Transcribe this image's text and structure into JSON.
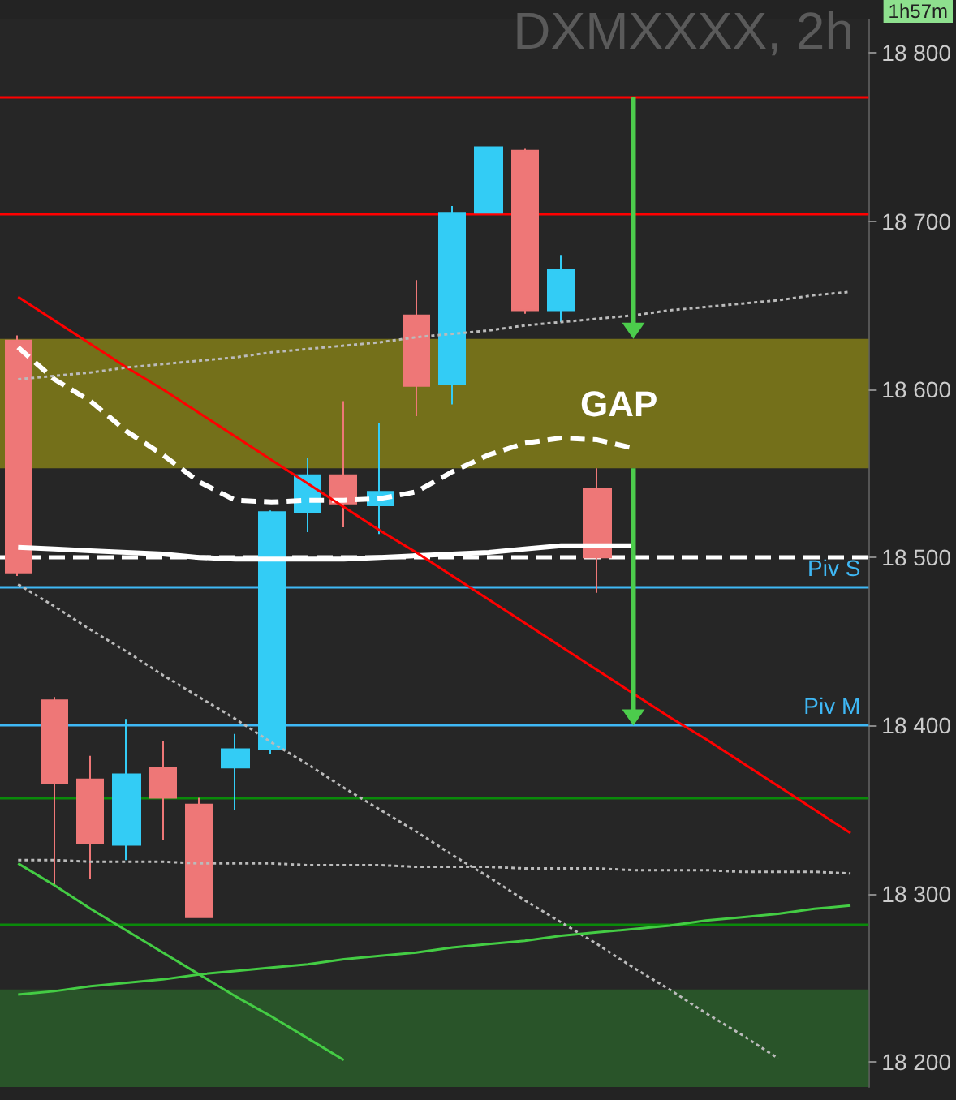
{
  "chart_data": {
    "type": "candlestick",
    "title": "DXMXXXX, 2h",
    "annotations": [
      "1h57m"
    ],
    "categories": [
      null,
      null,
      null,
      null,
      null,
      null,
      null,
      null,
      null,
      null,
      null,
      null,
      null,
      null,
      null,
      null,
      null,
      null,
      null,
      null,
      null,
      null,
      null,
      null
    ],
    "ohlc": [
      [
        18629,
        18632,
        18489,
        18491
      ],
      [
        18415,
        18417,
        18305,
        18366
      ],
      [
        18368,
        18382,
        18309,
        18330
      ],
      [
        18329,
        18404,
        18320,
        18371
      ],
      [
        18375,
        18391,
        18332,
        18357
      ],
      [
        18353,
        18357,
        18286,
        18286
      ],
      [
        18375,
        18395,
        18350,
        18386
      ],
      [
        18386,
        18528,
        18383,
        18527
      ],
      [
        18527,
        18559,
        18515,
        18549
      ],
      [
        18549,
        18593,
        18518,
        18532
      ],
      [
        18531,
        18580,
        18514,
        18539
      ],
      [
        18644,
        18665,
        18584,
        18602
      ],
      [
        18603,
        18709,
        18591,
        18705
      ],
      [
        18705,
        18744,
        18705,
        18744
      ],
      [
        18742,
        18743,
        18645,
        18647
      ],
      [
        18647,
        18680,
        18640,
        18671
      ],
      [
        18541,
        18553,
        18479,
        18500
      ],
      null,
      null,
      null,
      null,
      null,
      null,
      null
    ],
    "colors": [
      "#ee7777",
      "#ee7777",
      "#ee7777",
      "#33ccf5",
      "#ee7777",
      "#ee7777",
      "#33ccf5",
      "#33ccf5",
      "#33ccf5",
      "#ee7777",
      "#33ccf5",
      "#ee7777",
      "#33ccf5",
      "#33ccf5",
      "#ee7777",
      "#33ccf5",
      "#ee7777",
      null,
      null,
      null,
      null,
      null,
      null,
      null
    ],
    "series": [
      {
        "type": "line",
        "color": "#ffffff",
        "line_style": "dashed",
        "values": [
          18625,
          18606,
          18593,
          18575,
          18561,
          18545,
          18534,
          18533,
          18534,
          18534,
          18535,
          18539,
          18551,
          18561,
          18568,
          18571,
          18570,
          18565,
          null,
          null,
          null,
          null,
          null,
          null
        ]
      },
      {
        "type": "line",
        "color": "#ffffff",
        "line_style": "solid",
        "values": [
          18506,
          18505,
          18504,
          18503,
          18502,
          18500,
          18499,
          18499,
          18499,
          18499,
          18500,
          18501,
          18502,
          18503,
          18505,
          18507,
          18507,
          18507,
          null,
          null,
          null,
          null,
          null,
          null
        ]
      },
      {
        "type": "line",
        "color": "#ff0000",
        "line_style": "solid",
        "values": [
          18655,
          18641,
          18627,
          18613,
          18600,
          18586,
          18572,
          18558,
          18544,
          18530,
          18516,
          18503,
          18489,
          18475,
          18461,
          18447,
          18433,
          18419,
          18405,
          18392,
          18378,
          18364,
          18350,
          18336
        ]
      },
      {
        "type": "line",
        "color": "#bbbbbb",
        "line_style": "dotted",
        "values": [
          18606,
          18608,
          18610,
          18613,
          18615,
          18617,
          18619,
          18622,
          18624,
          18626,
          18628,
          18631,
          18633,
          18635,
          18638,
          18640,
          18642,
          18644,
          18647,
          18649,
          18651,
          18653,
          18656,
          18658
        ]
      },
      {
        "type": "line",
        "color": "#bbbbbb",
        "line_style": "dotted",
        "values": [
          18484,
          18471,
          18457,
          18444,
          18430,
          18417,
          18404,
          18390,
          18377,
          18363,
          18350,
          18337,
          18323,
          18310,
          18296,
          18283,
          18270,
          18256,
          18243,
          18229,
          18216,
          18202,
          null,
          null
        ]
      },
      {
        "type": "line",
        "color": "#bbbbbb",
        "line_style": "dotted",
        "values": [
          18320,
          18320,
          18319,
          18319,
          18319,
          18318,
          18318,
          18318,
          18317,
          18317,
          18317,
          18316,
          18316,
          18316,
          18315,
          18315,
          18315,
          18314,
          18314,
          18314,
          18313,
          18313,
          18313,
          18312
        ]
      },
      {
        "type": "line",
        "color": "#44cc44",
        "line_style": "solid",
        "values": [
          18318,
          18305,
          18291,
          18278,
          18265,
          18252,
          18239,
          18227,
          18214,
          18201,
          null,
          null,
          null,
          null,
          null,
          null,
          null,
          null,
          null,
          null,
          null,
          null,
          null,
          null
        ]
      },
      {
        "type": "line",
        "color": "#44cc44",
        "line_style": "solid",
        "values": [
          18240,
          18242,
          18245,
          18247,
          18249,
          18252,
          18254,
          18256,
          18258,
          18261,
          18263,
          18265,
          18268,
          18270,
          18272,
          18275,
          18277,
          18279,
          18281,
          18284,
          18286,
          18288,
          18291,
          18293
        ]
      }
    ],
    "ylim": [
      18185,
      18820
    ],
    "yticks": [
      {
        "value": 18200,
        "label": "18 200"
      },
      {
        "value": 18300,
        "label": "18 300"
      },
      {
        "value": 18400,
        "label": "18 400"
      },
      {
        "value": 18500,
        "label": "18 500"
      },
      {
        "value": 18600,
        "label": "18 600"
      },
      {
        "value": 18700,
        "label": "18 700"
      },
      {
        "value": 18800,
        "label": "18 800"
      }
    ],
    "ref_lines": [
      {
        "axis": "y",
        "value": 18500,
        "label": null,
        "color": "#ffffff",
        "line_style": "dashed"
      },
      {
        "axis": "y",
        "value": 18482,
        "label": "Piv S",
        "color": "#3fb8f5",
        "line_style": "solid"
      },
      {
        "axis": "y",
        "value": 18400,
        "label": "Piv M",
        "color": "#3fb8f5",
        "line_style": "solid"
      },
      {
        "axis": "y",
        "value": 18774,
        "label": null,
        "color": "#ff0000",
        "line_style": "solid"
      },
      {
        "axis": "y",
        "value": 18704,
        "label": null,
        "color": "#ff0000",
        "line_style": "solid"
      },
      {
        "axis": "y",
        "value": 18357,
        "label": null,
        "color": "#0a8a0a",
        "line_style": "solid"
      },
      {
        "axis": "y",
        "value": 18282,
        "label": null,
        "color": "#0a8a0a",
        "line_style": "solid"
      }
    ],
    "bands": [
      {
        "axis": "y",
        "from": 18553,
        "to": 18630,
        "label": "GAP",
        "color": "#b5ad10"
      },
      {
        "axis": "y",
        "from": 18185,
        "to": 18243,
        "label": null,
        "color": "#2b7a2b"
      }
    ],
    "grid": false,
    "tick_labels": "y",
    "marker": "none"
  }
}
